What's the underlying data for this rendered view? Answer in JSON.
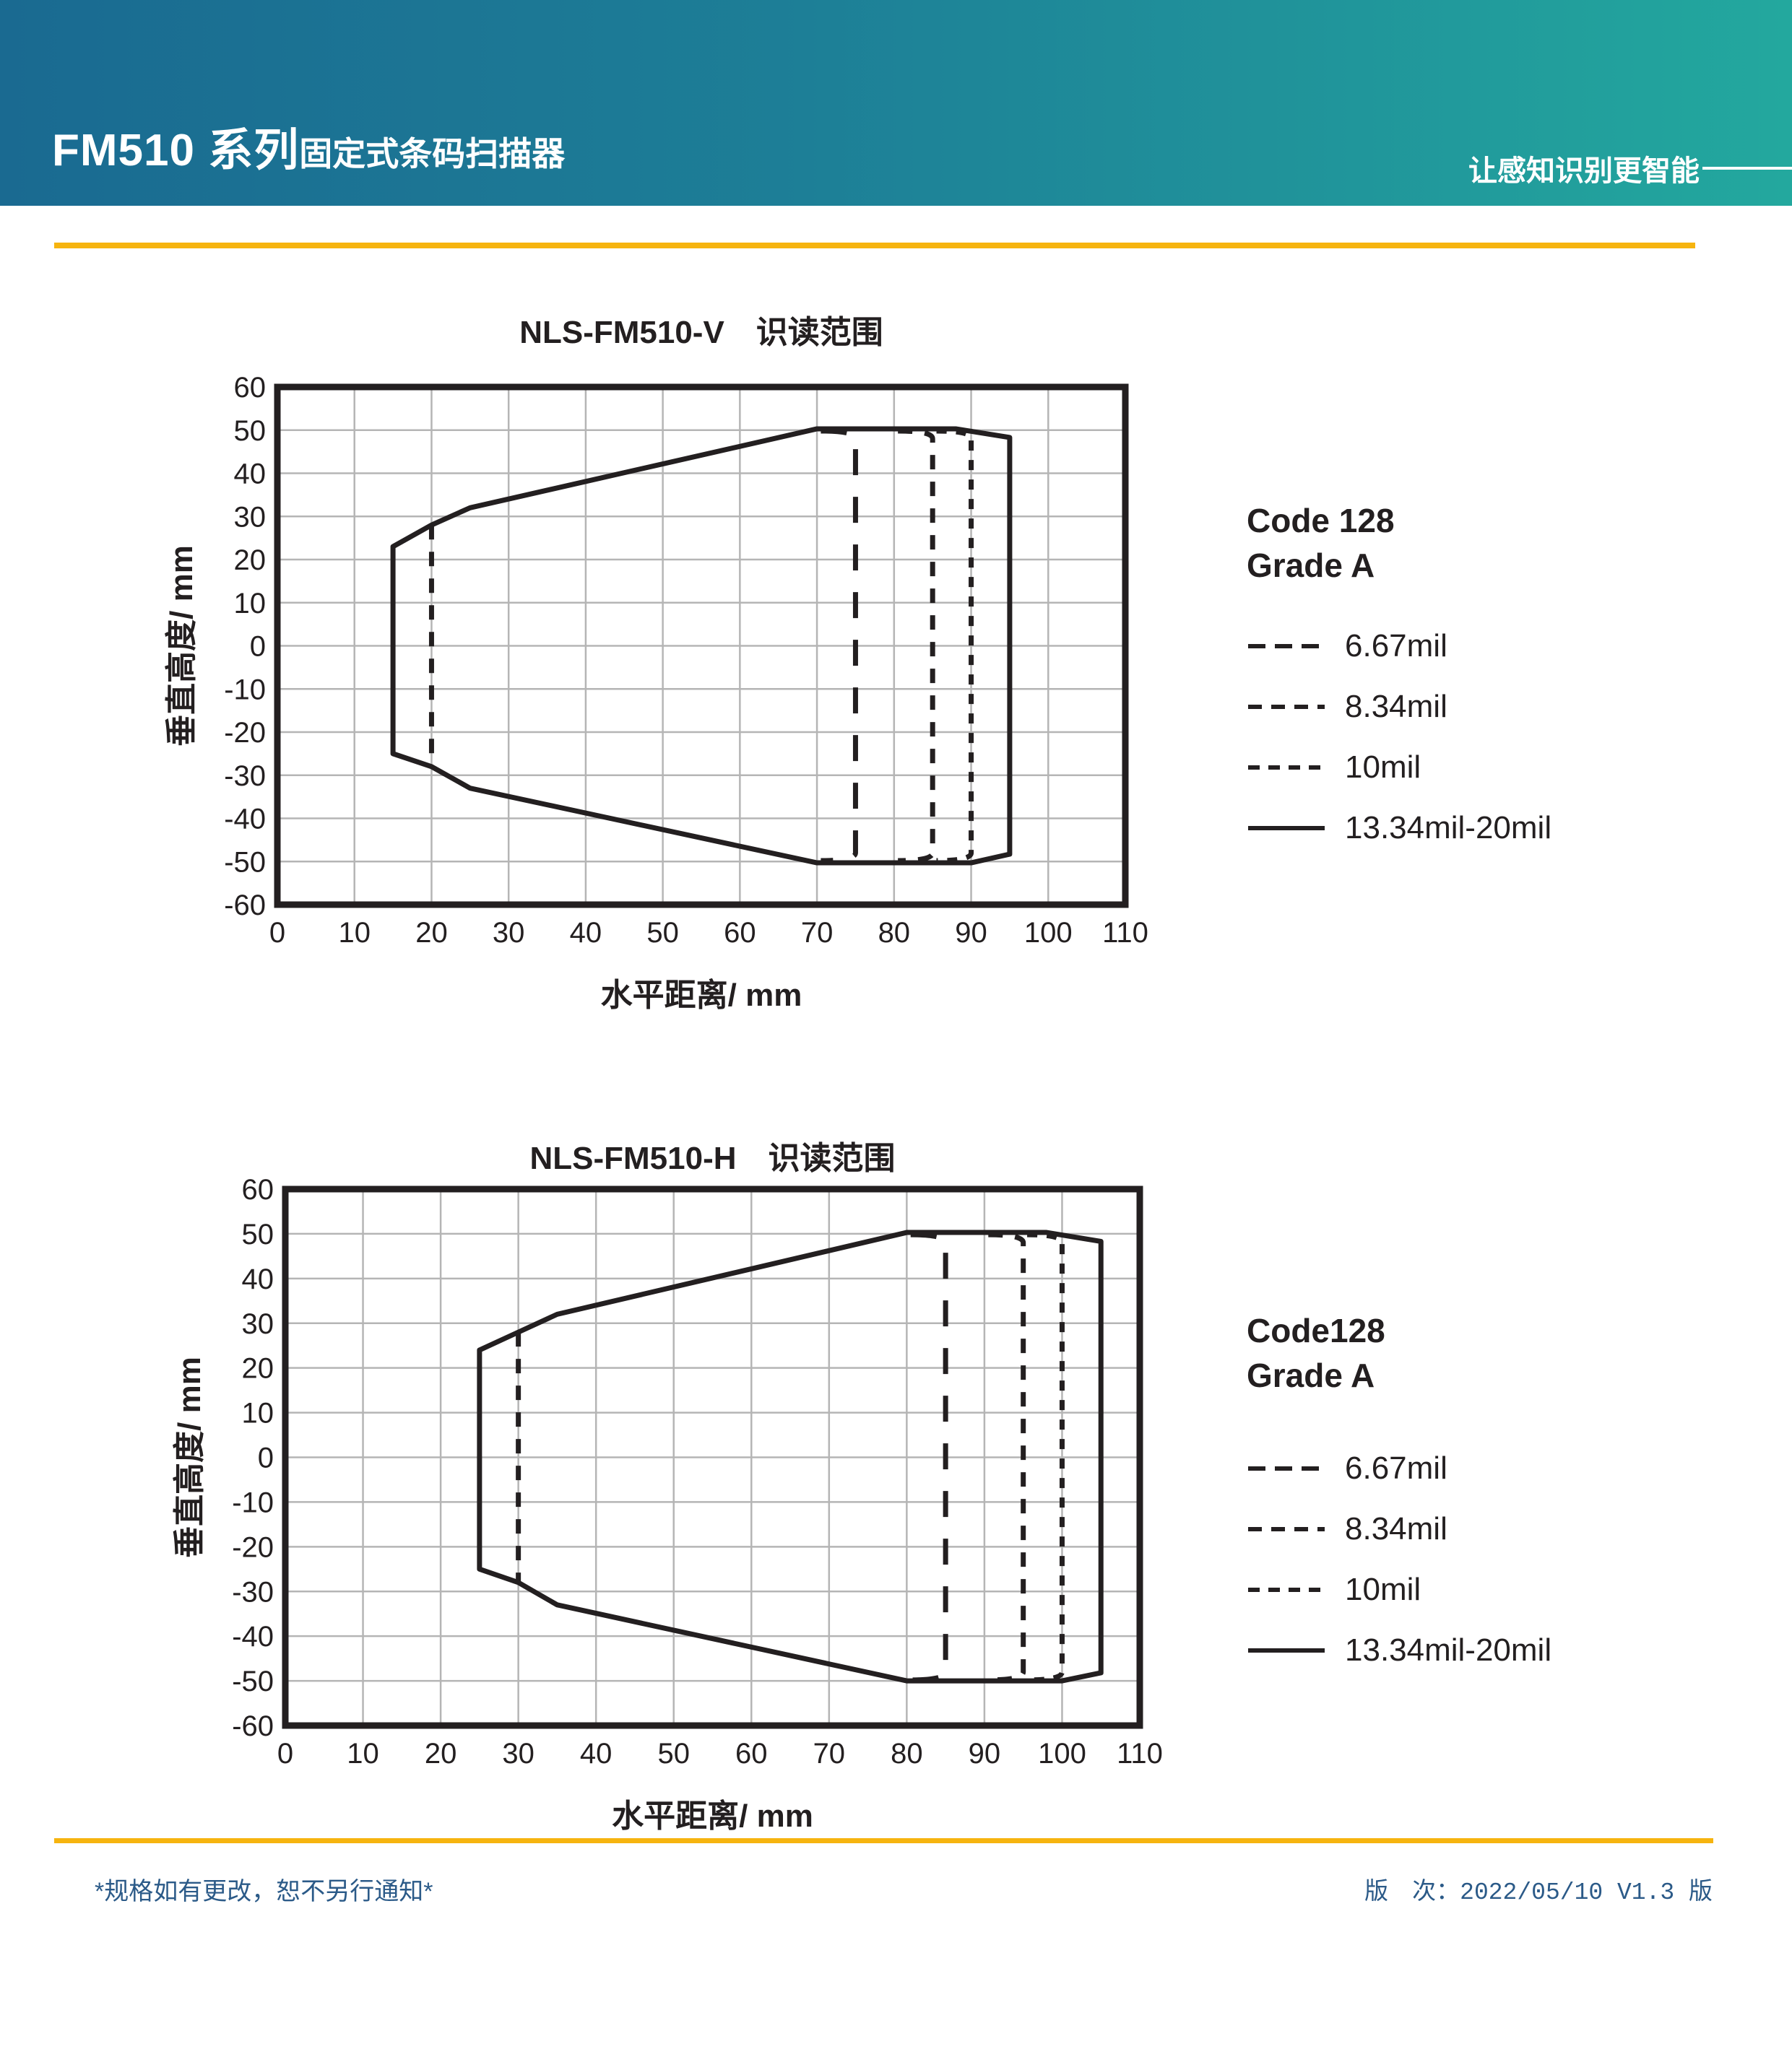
{
  "header": {
    "title_model": "FM510 系列",
    "title_suffix": "固定式条码扫描器",
    "slogan": "让感知识别更智能"
  },
  "colors": {
    "header_gradient_left": "#1a6a91",
    "header_gradient_right": "#23a89e",
    "accent_yellow": "#f6b40f",
    "chart_ink": "#231f20",
    "grid_gray": "#b5b5b5",
    "footer_blue": "#2b5a88"
  },
  "footer": {
    "left_note": "*规格如有更改，恕不另行通知*",
    "right_note": "版　次：2022/05/10 V1.3 版"
  },
  "chart_data": [
    {
      "type": "area",
      "title": "NLS-FM510-V　识读范围",
      "xlabel": "水平距离/ mm",
      "ylabel": "垂直高度/ mm",
      "xlim": [
        0,
        110
      ],
      "ylim": [
        -60,
        60
      ],
      "xticks": [
        0,
        10,
        20,
        30,
        40,
        50,
        60,
        70,
        80,
        90,
        100,
        110
      ],
      "yticks": [
        60,
        50,
        40,
        30,
        20,
        10,
        0,
        -10,
        -20,
        -30,
        -40,
        -50,
        -60
      ],
      "grid": true,
      "legend_position": "right",
      "legend_title": [
        "Code 128",
        "Grade A"
      ],
      "series": [
        {
          "name": "6.67mil near limit",
          "style": "dash",
          "points": [
            [
              20,
              28
            ],
            [
              20,
              -28
            ]
          ]
        },
        {
          "name": "6.67mil far limit",
          "style": "longdash",
          "rounded": true,
          "points": [
            [
              70.5,
              49.8
            ],
            [
              75,
              48
            ],
            [
              75,
              -48
            ],
            [
              70.5,
              -49.8
            ]
          ]
        },
        {
          "name": "8.34mil far limit",
          "style": "dash",
          "rounded": true,
          "points": [
            [
              80.5,
              49.8
            ],
            [
              85,
              48
            ],
            [
              85,
              -48
            ],
            [
              80.5,
              -49.8
            ]
          ]
        },
        {
          "name": "10mil far limit",
          "style": "shortdash",
          "rounded": true,
          "points": [
            [
              85.5,
              49.8
            ],
            [
              90,
              48
            ],
            [
              90,
              -48
            ],
            [
              85.5,
              -49.8
            ]
          ]
        },
        {
          "name": "13.34mil-20mil",
          "style": "solid",
          "closed": true,
          "points": [
            [
              15,
              23
            ],
            [
              20,
              28
            ],
            [
              25,
              32
            ],
            [
              70,
              50.3
            ],
            [
              88,
              50.3
            ],
            [
              95,
              48.3
            ],
            [
              95,
              -48.3
            ],
            [
              90,
              -50.3
            ],
            [
              70,
              -50.3
            ],
            [
              25,
              -33
            ],
            [
              20,
              -28
            ],
            [
              15,
              -25
            ]
          ]
        }
      ],
      "legend": [
        {
          "label": "6.67mil",
          "style": "legend667"
        },
        {
          "label": "8.34mil",
          "style": "legend834"
        },
        {
          "label": "10mil",
          "style": "legend10"
        },
        {
          "label": "13.34mil-20mil",
          "style": "solid"
        }
      ]
    },
    {
      "type": "area",
      "title": "NLS-FM510-H　识读范围",
      "xlabel": "水平距离/ mm",
      "ylabel": "垂直高度/ mm",
      "xlim": [
        0,
        110
      ],
      "ylim": [
        -60,
        60
      ],
      "xticks": [
        0,
        10,
        20,
        30,
        40,
        50,
        60,
        70,
        80,
        90,
        100,
        110
      ],
      "yticks": [
        60,
        50,
        40,
        30,
        20,
        10,
        0,
        -10,
        -20,
        -30,
        -40,
        -50,
        -60
      ],
      "grid": true,
      "legend_position": "right",
      "legend_title": [
        "Code128",
        "Grade A"
      ],
      "series": [
        {
          "name": "6.67mil near limit",
          "style": "dash",
          "points": [
            [
              30,
              28
            ],
            [
              30,
              -28
            ]
          ]
        },
        {
          "name": "6.67mil far limit",
          "style": "longdash",
          "rounded": true,
          "points": [
            [
              80.5,
              49.8
            ],
            [
              85,
              48
            ],
            [
              85,
              -48
            ],
            [
              80.5,
              -49.8
            ]
          ]
        },
        {
          "name": "8.34mil far limit",
          "style": "dash",
          "rounded": true,
          "points": [
            [
              90.5,
              49.8
            ],
            [
              95,
              48
            ],
            [
              95,
              -48
            ],
            [
              90.5,
              -49.8
            ]
          ]
        },
        {
          "name": "10mil far limit",
          "style": "shortdash",
          "rounded": true,
          "points": [
            [
              95.5,
              49.8
            ],
            [
              100,
              48
            ],
            [
              100,
              -48
            ],
            [
              95.5,
              -49.8
            ]
          ]
        },
        {
          "name": "13.34mil-20mil",
          "style": "solid",
          "closed": true,
          "points": [
            [
              25,
              24
            ],
            [
              30,
              28
            ],
            [
              35,
              32
            ],
            [
              80,
              50.3
            ],
            [
              98,
              50.3
            ],
            [
              105,
              48.3
            ],
            [
              105,
              -48.2
            ],
            [
              100,
              -50
            ],
            [
              80,
              -50
            ],
            [
              35,
              -33
            ],
            [
              30,
              -28
            ],
            [
              25,
              -25
            ]
          ]
        }
      ],
      "legend": [
        {
          "label": "6.67mil",
          "style": "legend667"
        },
        {
          "label": "8.34mil",
          "style": "legend834"
        },
        {
          "label": "10mil",
          "style": "legend10"
        },
        {
          "label": "13.34mil-20mil",
          "style": "solid"
        }
      ]
    }
  ]
}
